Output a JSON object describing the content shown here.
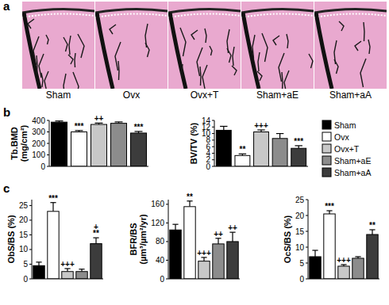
{
  "panel_labels": [
    "a",
    "b",
    "c"
  ],
  "images": {
    "labels": [
      "Sham",
      "Ovx",
      "Ovx+T",
      "Sham+aE",
      "Sham+aA"
    ]
  },
  "legend": {
    "entries": [
      {
        "name": "Sham",
        "color": "#000000"
      },
      {
        "name": "Ovx",
        "color": "#ffffff"
      },
      {
        "name": "Ovx+T",
        "color": "#c8c8c8"
      },
      {
        "name": "Sham+aE",
        "color": "#8c8c8c"
      },
      {
        "name": "Sham+aA",
        "color": "#3c3c3c"
      }
    ]
  },
  "chart_data": [
    {
      "type": "bar",
      "y_label": [
        "Tb.BMD",
        "(mg/cm²)"
      ],
      "categories": [
        null,
        null,
        null,
        null,
        null
      ],
      "values": [
        385,
        300,
        365,
        375,
        290
      ],
      "errors": [
        10,
        12,
        12,
        12,
        14
      ],
      "colors": [
        "#000000",
        "#ffffff",
        "#c8c8c8",
        "#8c8c8c",
        "#3c3c3c"
      ],
      "annotations": [
        [],
        [
          "***"
        ],
        [
          "++"
        ],
        [],
        [
          "***"
        ]
      ],
      "ylim": [
        0,
        400
      ],
      "yticks": [
        0,
        100,
        200,
        300,
        400
      ],
      "tick_labels": "y"
    },
    {
      "type": "bar",
      "y_label": [
        "BV/TV (%)"
      ],
      "categories": [
        null,
        null,
        null,
        null,
        null
      ],
      "values": [
        11,
        3.3,
        10.5,
        8.5,
        5.5
      ],
      "errors": [
        1.2,
        0.5,
        0.6,
        1.5,
        0.8
      ],
      "colors": [
        "#000000",
        "#ffffff",
        "#c8c8c8",
        "#8c8c8c",
        "#3c3c3c"
      ],
      "annotations": [
        [],
        [
          "**"
        ],
        [
          "+++"
        ],
        [],
        [
          "***"
        ]
      ],
      "ylim": [
        0,
        14
      ],
      "yticks": [
        0,
        2,
        4,
        6,
        8,
        10,
        12,
        14
      ],
      "tick_labels": "y",
      "legend": "right"
    },
    {
      "type": "bar",
      "y_label": [
        "ObS/BS (%)"
      ],
      "categories": [
        null,
        null,
        null,
        null,
        null
      ],
      "values": [
        4.5,
        23,
        2.5,
        2.5,
        12
      ],
      "errors": [
        1.2,
        3,
        1,
        0.8,
        2
      ],
      "colors": [
        "#000000",
        "#ffffff",
        "#c8c8c8",
        "#8c8c8c",
        "#3c3c3c"
      ],
      "annotations": [
        [],
        [
          "***"
        ],
        [
          "+++"
        ],
        [],
        [
          "+",
          "**"
        ]
      ],
      "ylim": [
        0,
        27
      ],
      "yticks": [
        0,
        5,
        10,
        15,
        20,
        25
      ],
      "tick_labels": "y"
    },
    {
      "type": "bar",
      "y_label": [
        "BFR/BS",
        "(µm³/µm²/yr)"
      ],
      "categories": [
        null,
        null,
        null,
        null,
        null
      ],
      "values": [
        105,
        155,
        38,
        75,
        80
      ],
      "errors": [
        12,
        12,
        8,
        12,
        20
      ],
      "colors": [
        "#000000",
        "#ffffff",
        "#c8c8c8",
        "#8c8c8c",
        "#3c3c3c"
      ],
      "annotations": [
        [],
        [
          "**"
        ],
        [
          "+++"
        ],
        [
          "++"
        ],
        [
          "++"
        ]
      ],
      "ylim": [
        0,
        170
      ],
      "yticks": [
        0,
        40,
        80,
        120,
        160
      ],
      "tick_labels": "y"
    },
    {
      "type": "bar",
      "y_label": [
        "OcS/BS (%)"
      ],
      "categories": [
        null,
        null,
        null,
        null,
        null
      ],
      "values": [
        7,
        20.5,
        4,
        6.5,
        14
      ],
      "errors": [
        2,
        1,
        0.5,
        0.5,
        1.5
      ],
      "colors": [
        "#000000",
        "#ffffff",
        "#c8c8c8",
        "#8c8c8c",
        "#3c3c3c"
      ],
      "annotations": [
        [],
        [
          "***"
        ],
        [
          "+++"
        ],
        [],
        [
          "**"
        ]
      ],
      "ylim": [
        0,
        25
      ],
      "yticks": [
        0,
        5,
        10,
        15,
        20,
        25
      ],
      "tick_labels": "y"
    }
  ]
}
